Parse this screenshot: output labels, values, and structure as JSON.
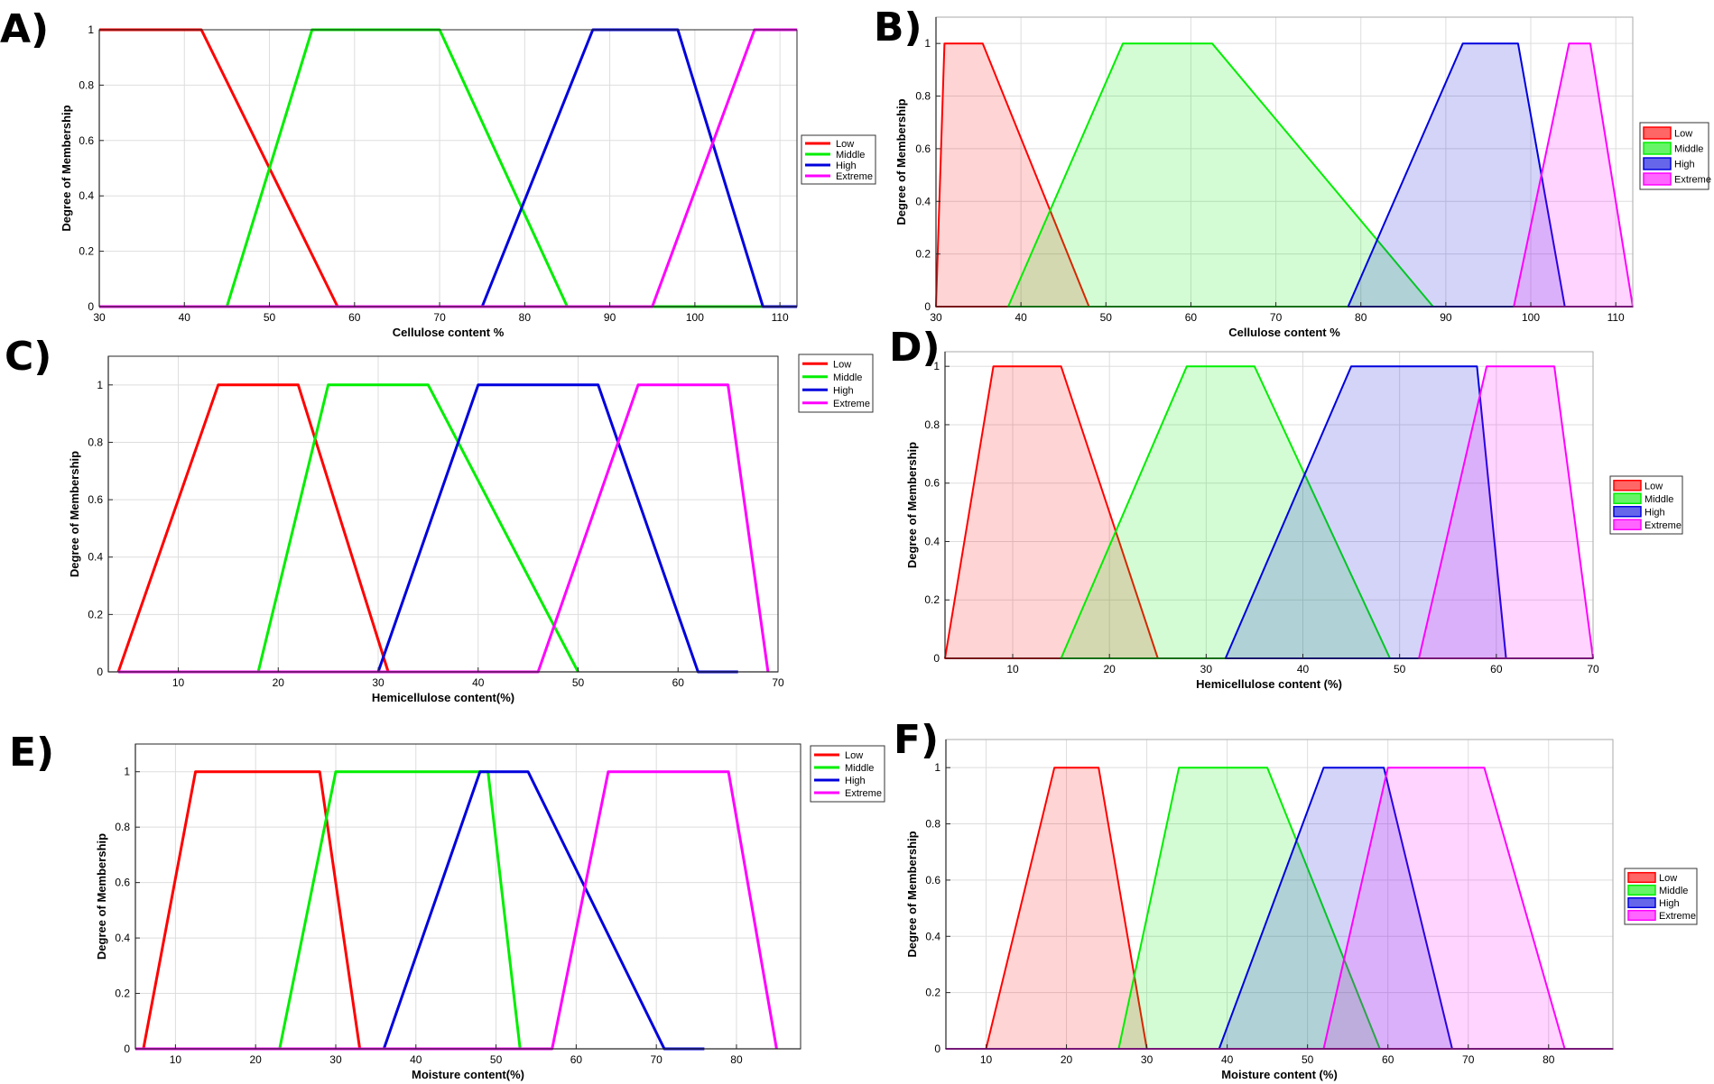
{
  "colors": {
    "low": "#ff0000",
    "middle": "#00ee00",
    "high": "#0000dd",
    "extreme": "#ff00ff",
    "grid": "#dddddd",
    "axis": "#262626"
  },
  "chart_data": [
    {
      "panel": "A)",
      "type": "line",
      "style": "line",
      "xlabel": "Cellulose content %",
      "ylabel": "Degree of Membership",
      "xlim": [
        30,
        112
      ],
      "ylim": [
        0,
        1
      ],
      "xticks": [
        30,
        40,
        50,
        60,
        70,
        80,
        90,
        100,
        110
      ],
      "yticks": [
        0,
        0.2,
        0.4,
        0.6,
        0.8,
        1
      ],
      "grid": true,
      "legend_position": "right",
      "series": [
        {
          "name": "Low",
          "color_key": "low",
          "points": [
            [
              30,
              1
            ],
            [
              42,
              1
            ],
            [
              58,
              0
            ],
            [
              112,
              0
            ]
          ]
        },
        {
          "name": "Middle",
          "color_key": "middle",
          "points": [
            [
              30,
              0
            ],
            [
              45,
              0
            ],
            [
              55,
              1
            ],
            [
              70,
              1
            ],
            [
              85,
              0
            ],
            [
              112,
              0
            ]
          ]
        },
        {
          "name": "High",
          "color_key": "high",
          "points": [
            [
              30,
              0
            ],
            [
              75,
              0
            ],
            [
              88,
              1
            ],
            [
              98,
              1
            ],
            [
              108,
              0
            ],
            [
              112,
              0
            ]
          ]
        },
        {
          "name": "Extreme",
          "color_key": "extreme",
          "points": [
            [
              30,
              0
            ],
            [
              95,
              0
            ],
            [
              107,
              1
            ],
            [
              112,
              1
            ]
          ]
        }
      ]
    },
    {
      "panel": "B)",
      "type": "area",
      "style": "filled",
      "xlabel": "Cellulose content %",
      "ylabel": "Degree of Membership",
      "xlim": [
        30,
        112
      ],
      "ylim": [
        0,
        1.1
      ],
      "xticks": [
        30,
        40,
        50,
        60,
        70,
        80,
        90,
        100,
        110
      ],
      "yticks": [
        0,
        0.2,
        0.4,
        0.6,
        0.8,
        1
      ],
      "grid": true,
      "legend_position": "right",
      "series": [
        {
          "name": "Low",
          "color_key": "low",
          "points": [
            [
              30,
              0
            ],
            [
              31,
              1
            ],
            [
              35.5,
              1
            ],
            [
              48,
              0
            ]
          ]
        },
        {
          "name": "Middle",
          "color_key": "middle",
          "points": [
            [
              38.5,
              0
            ],
            [
              52,
              1
            ],
            [
              62.5,
              1
            ],
            [
              88.5,
              0
            ]
          ]
        },
        {
          "name": "High",
          "color_key": "high",
          "points": [
            [
              78.5,
              0
            ],
            [
              92,
              1
            ],
            [
              98.5,
              1
            ],
            [
              104,
              0
            ]
          ]
        },
        {
          "name": "Extreme",
          "color_key": "extreme",
          "points": [
            [
              98,
              0
            ],
            [
              104.5,
              1
            ],
            [
              107,
              1
            ],
            [
              112,
              0
            ]
          ]
        }
      ]
    },
    {
      "panel": "C)",
      "type": "line",
      "style": "line",
      "xlabel": "Hemicellulose content(%)",
      "ylabel": "Degree of Membership",
      "xlim": [
        3,
        70
      ],
      "ylim": [
        0,
        1.1
      ],
      "xticks": [
        10,
        20,
        30,
        40,
        50,
        60,
        70
      ],
      "yticks": [
        0,
        0.2,
        0.4,
        0.6,
        0.8,
        1
      ],
      "grid": true,
      "legend_position": "top-right",
      "series": [
        {
          "name": "Low",
          "color_key": "low",
          "points": [
            [
              4,
              0
            ],
            [
              14,
              1
            ],
            [
              22,
              1
            ],
            [
              31,
              0
            ]
          ]
        },
        {
          "name": "Middle",
          "color_key": "middle",
          "points": [
            [
              18,
              0
            ],
            [
              25,
              1
            ],
            [
              35,
              1
            ],
            [
              50,
              0
            ]
          ]
        },
        {
          "name": "High",
          "color_key": "high",
          "points": [
            [
              30,
              0
            ],
            [
              40,
              1
            ],
            [
              52,
              1
            ],
            [
              62,
              0
            ],
            [
              66,
              0
            ]
          ]
        },
        {
          "name": "Extreme",
          "color_key": "extreme",
          "points": [
            [
              4,
              0
            ],
            [
              46,
              0
            ],
            [
              56,
              1
            ],
            [
              65,
              1
            ],
            [
              69,
              0
            ]
          ]
        }
      ]
    },
    {
      "panel": "D)",
      "type": "area",
      "style": "filled",
      "xlabel": "Hemicellulose content (%)",
      "ylabel": "Degree of Membership",
      "xlim": [
        3,
        70
      ],
      "ylim": [
        0,
        1.05
      ],
      "xticks": [
        10,
        20,
        30,
        40,
        50,
        60,
        70
      ],
      "yticks": [
        0,
        0.2,
        0.4,
        0.6,
        0.8,
        1
      ],
      "grid": true,
      "legend_position": "right",
      "series": [
        {
          "name": "Low",
          "color_key": "low",
          "points": [
            [
              3,
              0
            ],
            [
              8,
              1
            ],
            [
              15,
              1
            ],
            [
              25,
              0
            ]
          ]
        },
        {
          "name": "Middle",
          "color_key": "middle",
          "points": [
            [
              15,
              0
            ],
            [
              28,
              1
            ],
            [
              35,
              1
            ],
            [
              49,
              0
            ]
          ]
        },
        {
          "name": "High",
          "color_key": "high",
          "points": [
            [
              32,
              0
            ],
            [
              45,
              1
            ],
            [
              58,
              1
            ],
            [
              61,
              0
            ]
          ]
        },
        {
          "name": "Extreme",
          "color_key": "extreme",
          "points": [
            [
              52,
              0
            ],
            [
              59,
              1
            ],
            [
              66,
              1
            ],
            [
              70,
              0
            ]
          ]
        }
      ]
    },
    {
      "panel": "E)",
      "type": "line",
      "style": "line",
      "xlabel": "Moisture content(%)",
      "ylabel": "Degree of Membership",
      "xlim": [
        5,
        88
      ],
      "ylim": [
        0,
        1.1
      ],
      "xticks": [
        10,
        20,
        30,
        40,
        50,
        60,
        70,
        80
      ],
      "yticks": [
        0,
        0.2,
        0.4,
        0.6,
        0.8,
        1
      ],
      "grid": true,
      "legend_position": "top-right",
      "series": [
        {
          "name": "Low",
          "color_key": "low",
          "points": [
            [
              6,
              0
            ],
            [
              12.5,
              1
            ],
            [
              28,
              1
            ],
            [
              33,
              0
            ]
          ]
        },
        {
          "name": "Middle",
          "color_key": "middle",
          "points": [
            [
              23,
              0
            ],
            [
              30,
              1
            ],
            [
              49,
              1
            ],
            [
              53,
              0
            ]
          ]
        },
        {
          "name": "High",
          "color_key": "high",
          "points": [
            [
              36,
              0
            ],
            [
              48,
              1
            ],
            [
              54,
              1
            ],
            [
              71,
              0
            ],
            [
              76,
              0
            ]
          ]
        },
        {
          "name": "Extreme",
          "color_key": "extreme",
          "points": [
            [
              5,
              0
            ],
            [
              57,
              0
            ],
            [
              64,
              1
            ],
            [
              79,
              1
            ],
            [
              85,
              0
            ]
          ]
        }
      ]
    },
    {
      "panel": "F)",
      "type": "area",
      "style": "filled",
      "xlabel": "Moisture content (%)",
      "ylabel": "Degree of Membership",
      "xlim": [
        5,
        88
      ],
      "ylim": [
        0,
        1.1
      ],
      "xticks": [
        10,
        20,
        30,
        40,
        50,
        60,
        70,
        80
      ],
      "yticks": [
        0,
        0.2,
        0.4,
        0.6,
        0.8,
        1
      ],
      "grid": true,
      "legend_position": "right",
      "series": [
        {
          "name": "Low",
          "color_key": "low",
          "points": [
            [
              10,
              0
            ],
            [
              18.5,
              1
            ],
            [
              24,
              1
            ],
            [
              30,
              0
            ]
          ]
        },
        {
          "name": "Middle",
          "color_key": "middle",
          "points": [
            [
              26.5,
              0
            ],
            [
              34,
              1
            ],
            [
              45,
              1
            ],
            [
              59,
              0
            ]
          ]
        },
        {
          "name": "High",
          "color_key": "high",
          "points": [
            [
              39,
              0
            ],
            [
              52,
              1
            ],
            [
              59.5,
              1
            ],
            [
              68,
              0
            ]
          ]
        },
        {
          "name": "Extreme",
          "color_key": "extreme",
          "points": [
            [
              5,
              0
            ],
            [
              52,
              0
            ],
            [
              60,
              1
            ],
            [
              72,
              1
            ],
            [
              82,
              0
            ],
            [
              88,
              0
            ]
          ]
        }
      ]
    }
  ]
}
